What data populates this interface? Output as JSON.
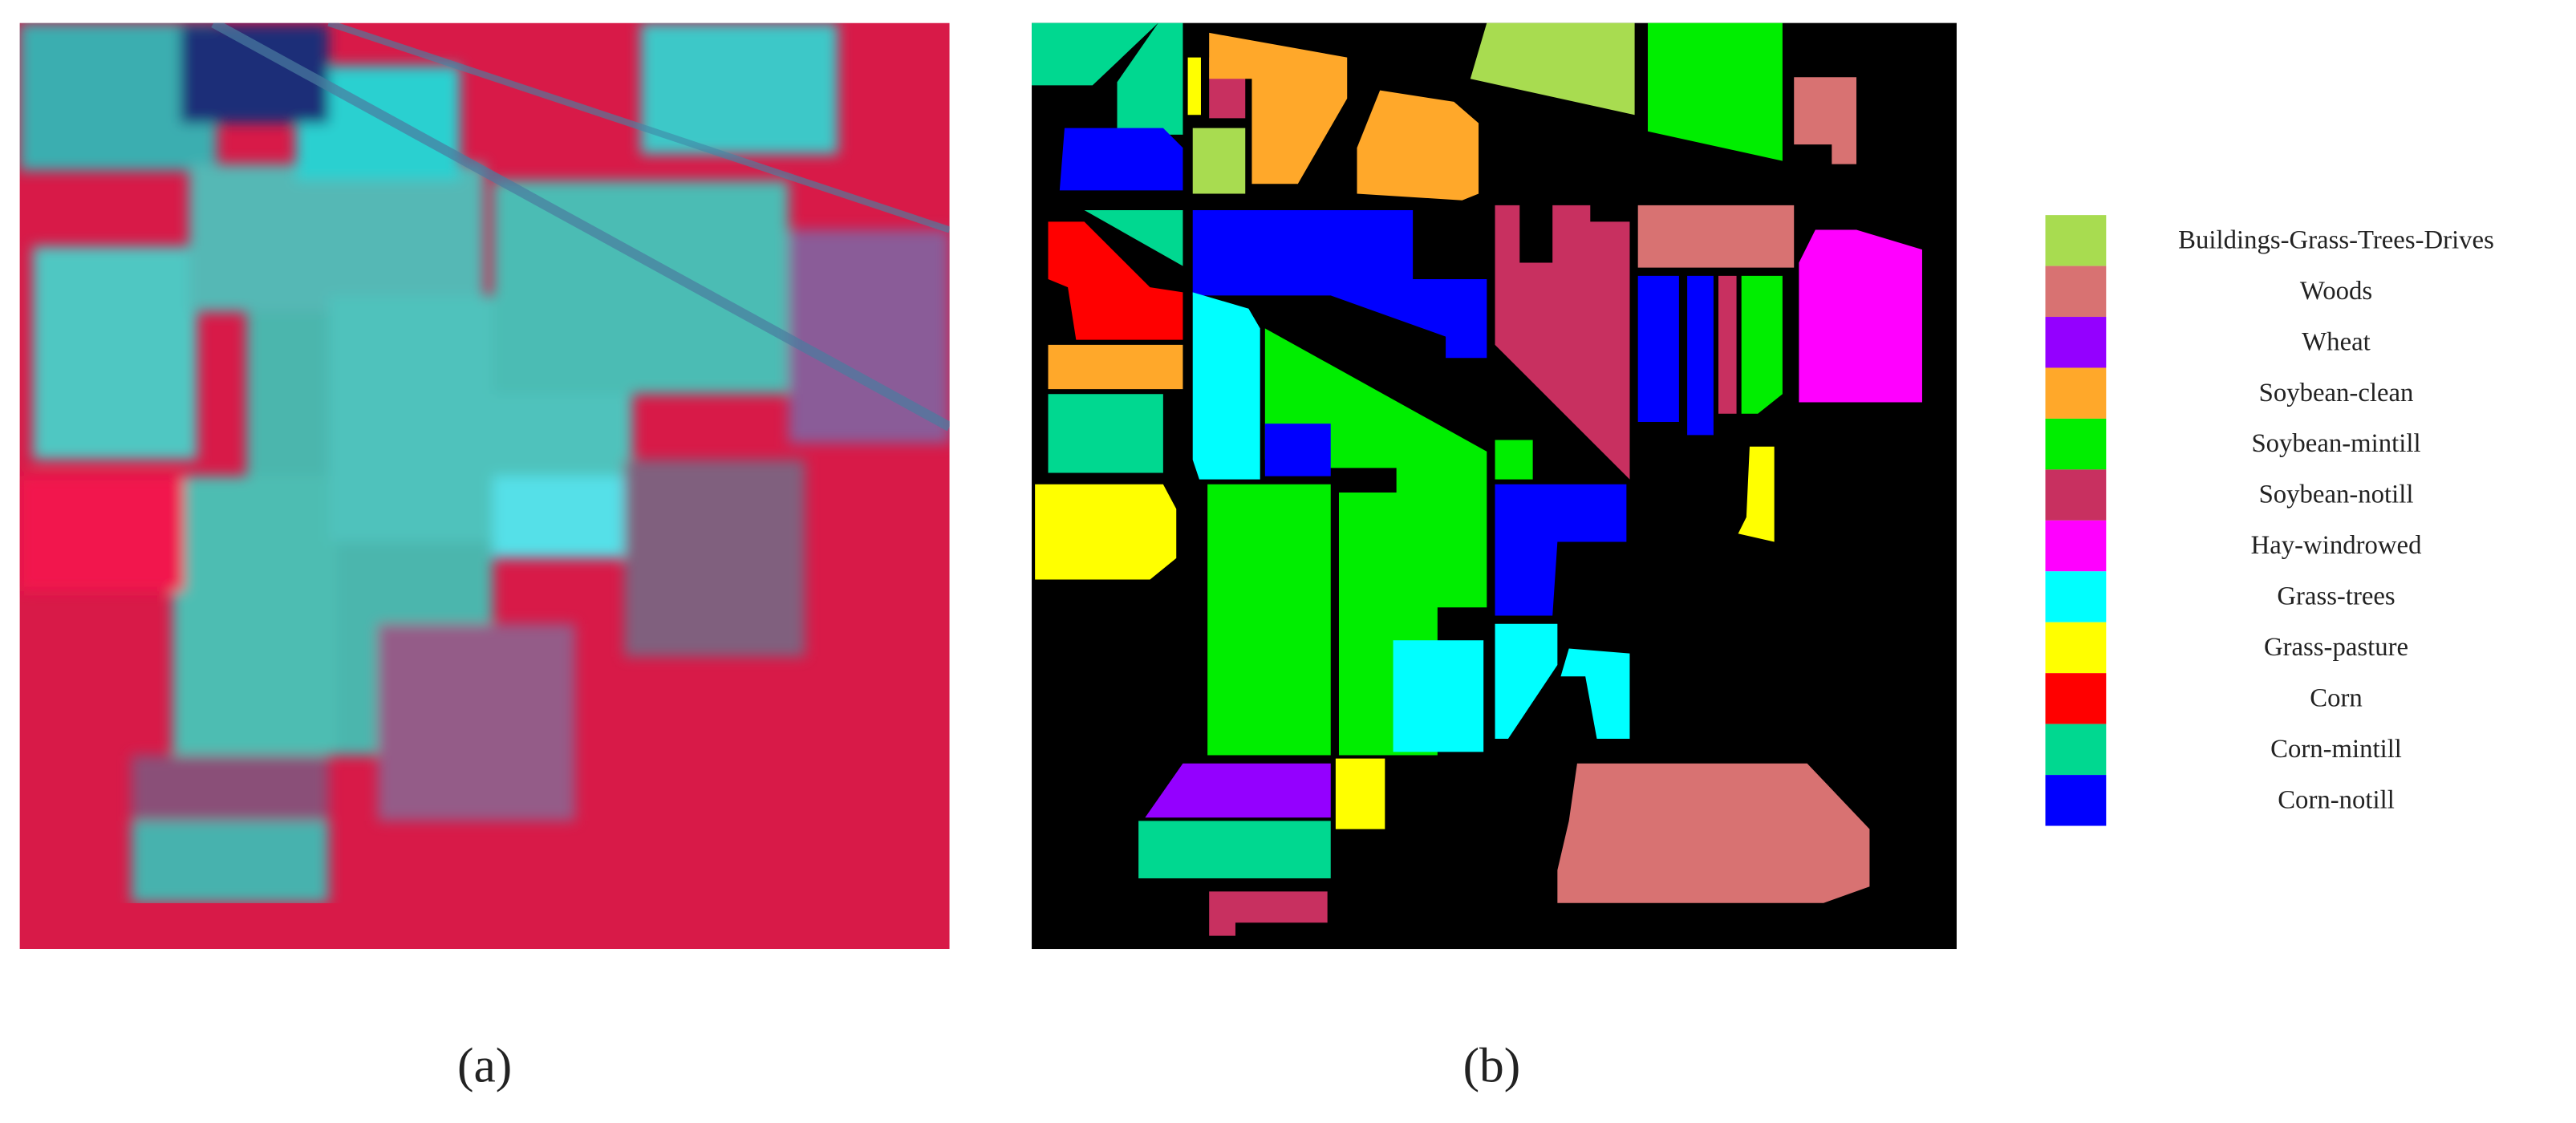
{
  "panels": [
    {
      "label": "(a)"
    },
    {
      "label": "(b)"
    }
  ],
  "legend": {
    "items": [
      {
        "name": "Buildings-Grass-Trees-Drives",
        "color": "#a8dc50"
      },
      {
        "name": "Woods",
        "color": "#d87272"
      },
      {
        "name": "Wheat",
        "color": "#9400ff"
      },
      {
        "name": "Soybean-clean",
        "color": "#ffa82a"
      },
      {
        "name": "Soybean-mintill",
        "color": "#00ee00"
      },
      {
        "name": "Soybean-notill",
        "color": "#c83060"
      },
      {
        "name": "Hay-windrowed",
        "color": "#ff00ff"
      },
      {
        "name": "Grass-trees",
        "color": "#00ffff"
      },
      {
        "name": "Grass-pasture",
        "color": "#ffff00"
      },
      {
        "name": "Corn",
        "color": "#ff0000"
      },
      {
        "name": "Corn-mintill",
        "color": "#00d890"
      },
      {
        "name": "Corn-notill",
        "color": "#0000ff"
      }
    ]
  }
}
